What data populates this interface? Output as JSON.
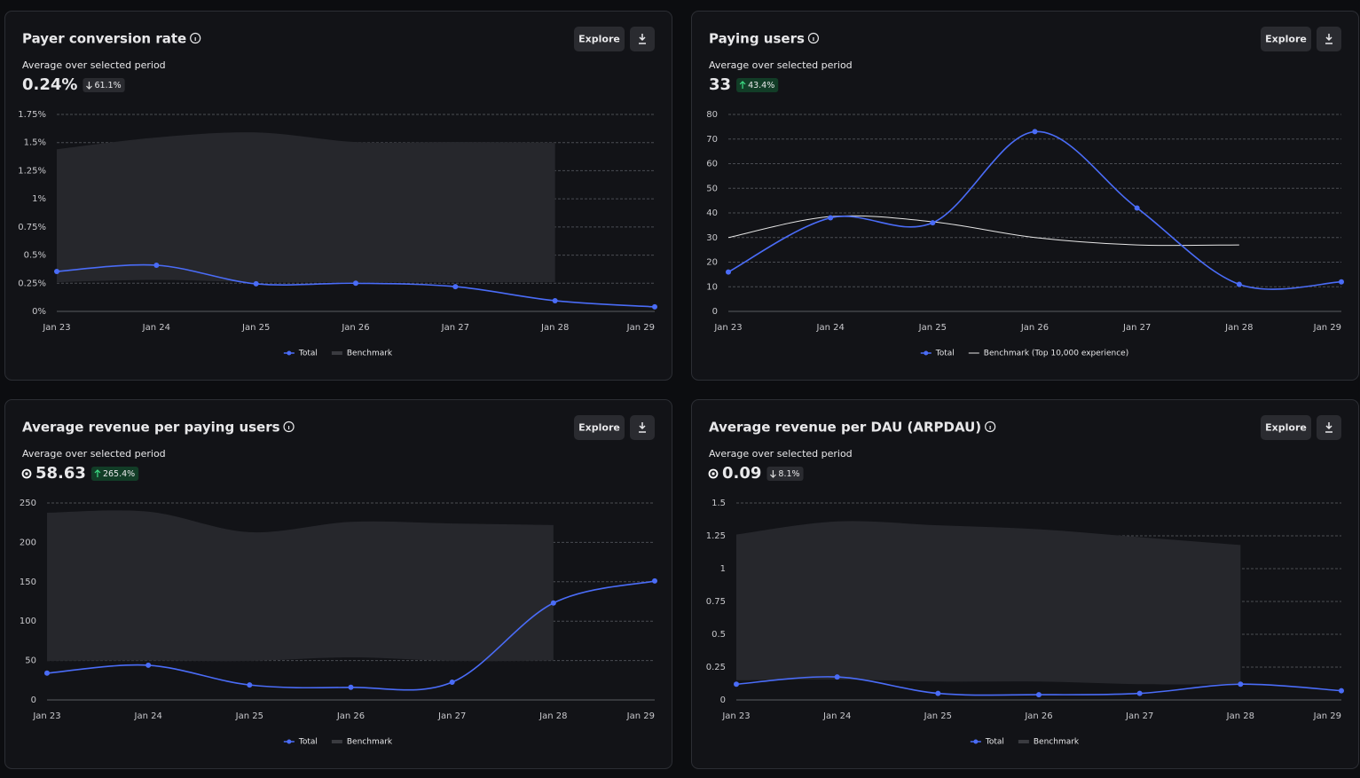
{
  "chart_data": [
    {
      "type": "line",
      "title": "Payer conversion rate",
      "subtitle": "Average over selected period",
      "value": "0.24%",
      "change": "61.1%",
      "change_direction": "down",
      "button": "Explore",
      "categories": [
        "Jan 23",
        "Jan 24",
        "Jan 25",
        "Jan 26",
        "Jan 27",
        "Jan 28",
        "Jan 29"
      ],
      "series": [
        {
          "name": "Total",
          "color": "#4a6cf7",
          "style": "line",
          "values": [
            0.355,
            0.41,
            0.245,
            0.25,
            0.22,
            0.095,
            0.04
          ]
        },
        {
          "name": "Benchmark",
          "color": "#26272c",
          "style": "band",
          "low": [
            0.26,
            0.28,
            0.26,
            0.26,
            0.26,
            0.26,
            null
          ],
          "high": [
            1.44,
            1.545,
            1.59,
            1.505,
            1.505,
            1.5,
            null
          ]
        }
      ],
      "ylim": [
        0,
        1.75
      ],
      "yticks": [
        {
          "value": 0,
          "label": "0%"
        },
        {
          "value": 0.25,
          "label": "0.25%"
        },
        {
          "value": 0.5,
          "label": "0.5%"
        },
        {
          "value": 0.75,
          "label": "0.75%"
        },
        {
          "value": 1,
          "label": "1%"
        },
        {
          "value": 1.25,
          "label": "1.25%"
        },
        {
          "value": 1.5,
          "label": "1.5%"
        },
        {
          "value": 1.75,
          "label": "1.75%"
        }
      ],
      "grid": true
    },
    {
      "type": "line",
      "title": "Paying users",
      "subtitle": "Average over selected period",
      "value": "33",
      "change": "43.4%",
      "change_direction": "up",
      "button": "Explore",
      "categories": [
        "Jan 23",
        "Jan 24",
        "Jan 25",
        "Jan 26",
        "Jan 27",
        "Jan 28",
        "Jan 29"
      ],
      "series": [
        {
          "name": "Total",
          "color": "#4a6cf7",
          "style": "line",
          "values": [
            16,
            38,
            36,
            73,
            42,
            11,
            12
          ]
        },
        {
          "name": "Benchmark (Top 10,000 experience)",
          "color": "#e6e6e6",
          "style": "thin",
          "values": [
            30,
            38.5,
            36.4,
            30,
            27,
            27,
            null
          ]
        }
      ],
      "ylim": [
        0,
        80
      ],
      "yticks": [
        0,
        10,
        20,
        30,
        40,
        50,
        60,
        70,
        80
      ],
      "grid": true
    },
    {
      "type": "line",
      "title": "Average revenue per paying users",
      "subtitle": "Average over selected period",
      "value": "58.63",
      "value_icon": "robux",
      "change": "265.4%",
      "change_direction": "up",
      "button": "Explore",
      "categories": [
        "Jan 23",
        "Jan 24",
        "Jan 25",
        "Jan 26",
        "Jan 27",
        "Jan 28",
        "Jan 29"
      ],
      "series": [
        {
          "name": "Total",
          "color": "#4a6cf7",
          "style": "line",
          "values": [
            34,
            44,
            19,
            16,
            22.5,
            123,
            151
          ]
        },
        {
          "name": "Benchmark",
          "color": "#26272c",
          "style": "band",
          "low": [
            49.5,
            50,
            49.5,
            54,
            49.5,
            50,
            null
          ],
          "high": [
            237.6,
            239,
            213,
            226,
            224,
            222,
            null
          ]
        }
      ],
      "ylim": [
        0,
        250
      ],
      "yticks": [
        0,
        50,
        100,
        150,
        200,
        250
      ],
      "grid": true
    },
    {
      "type": "line",
      "title": "Average revenue per DAU (ARPDAU)",
      "subtitle": "Average over selected period",
      "value": "0.09",
      "value_icon": "robux",
      "change": "8.1%",
      "change_direction": "down",
      "button": "Explore",
      "categories": [
        "Jan 23",
        "Jan 24",
        "Jan 25",
        "Jan 26",
        "Jan 27",
        "Jan 28",
        "Jan 29"
      ],
      "series": [
        {
          "name": "Total",
          "color": "#4a6cf7",
          "style": "line",
          "values": [
            0.12,
            0.175,
            0.05,
            0.04,
            0.05,
            0.12,
            0.07
          ]
        },
        {
          "name": "Benchmark",
          "color": "#26272c",
          "style": "band",
          "low": [
            0.15,
            0.155,
            0.14,
            0.14,
            0.12,
            0.12,
            null
          ],
          "high": [
            1.26,
            1.36,
            1.33,
            1.3,
            1.24,
            1.18,
            null
          ]
        }
      ],
      "ylim": [
        0,
        1.5
      ],
      "yticks": [
        0,
        0.25,
        0.5,
        0.75,
        1,
        1.25,
        1.5
      ],
      "grid": true
    }
  ]
}
